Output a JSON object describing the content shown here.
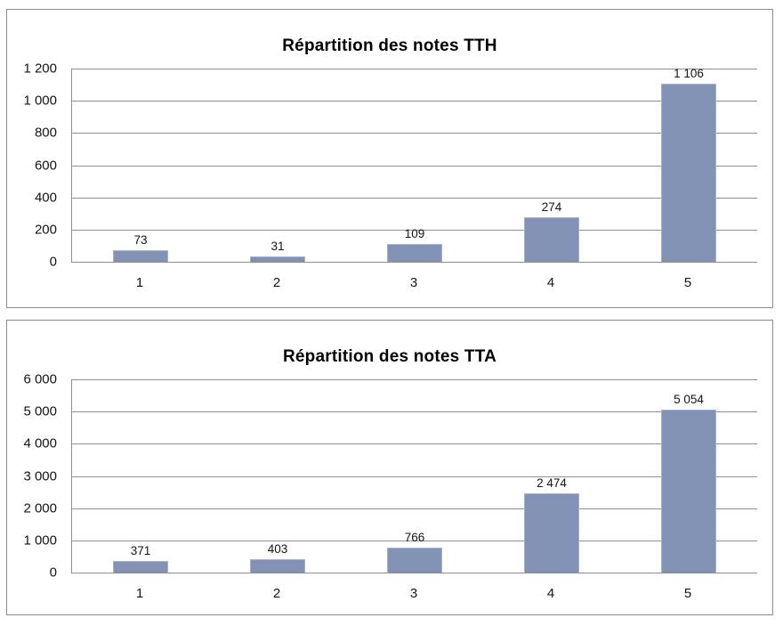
{
  "page": {
    "background_color": "#FFFFFF",
    "panel_border_color": "#8C8C8C",
    "gridline_color": "#8F8F8F",
    "bar_fill_color": "#8292B4",
    "bar_edge_color": "#A6B1CA",
    "text_color": "#141414"
  },
  "chart_data": [
    {
      "id": "tth",
      "type": "bar",
      "title": "Répartition des notes TTH",
      "categories": [
        "1",
        "2",
        "3",
        "4",
        "5"
      ],
      "values": [
        73,
        31,
        109,
        274,
        1106
      ],
      "value_labels": [
        "73",
        "31",
        "109",
        "274",
        "1 106"
      ],
      "xlabel": "",
      "ylabel": "",
      "ylim": [
        0,
        1200
      ],
      "ytick_values": [
        0,
        200,
        400,
        600,
        800,
        1000,
        1200
      ],
      "ytick_labels": [
        "0",
        "200",
        "400",
        "600",
        "800",
        "1 000",
        "1 200"
      ],
      "grid": true,
      "legend": "none"
    },
    {
      "id": "tta",
      "type": "bar",
      "title": "Répartition des notes TTA",
      "categories": [
        "1",
        "2",
        "3",
        "4",
        "5"
      ],
      "values": [
        371,
        403,
        766,
        2474,
        5054
      ],
      "value_labels": [
        "371",
        "403",
        "766",
        "2 474",
        "5 054"
      ],
      "xlabel": "",
      "ylabel": "",
      "ylim": [
        0,
        6000
      ],
      "ytick_values": [
        0,
        1000,
        2000,
        3000,
        4000,
        5000,
        6000
      ],
      "ytick_labels": [
        "0",
        "1 000",
        "2 000",
        "3 000",
        "4 000",
        "5 000",
        "6 000"
      ],
      "grid": true,
      "legend": "none"
    }
  ]
}
